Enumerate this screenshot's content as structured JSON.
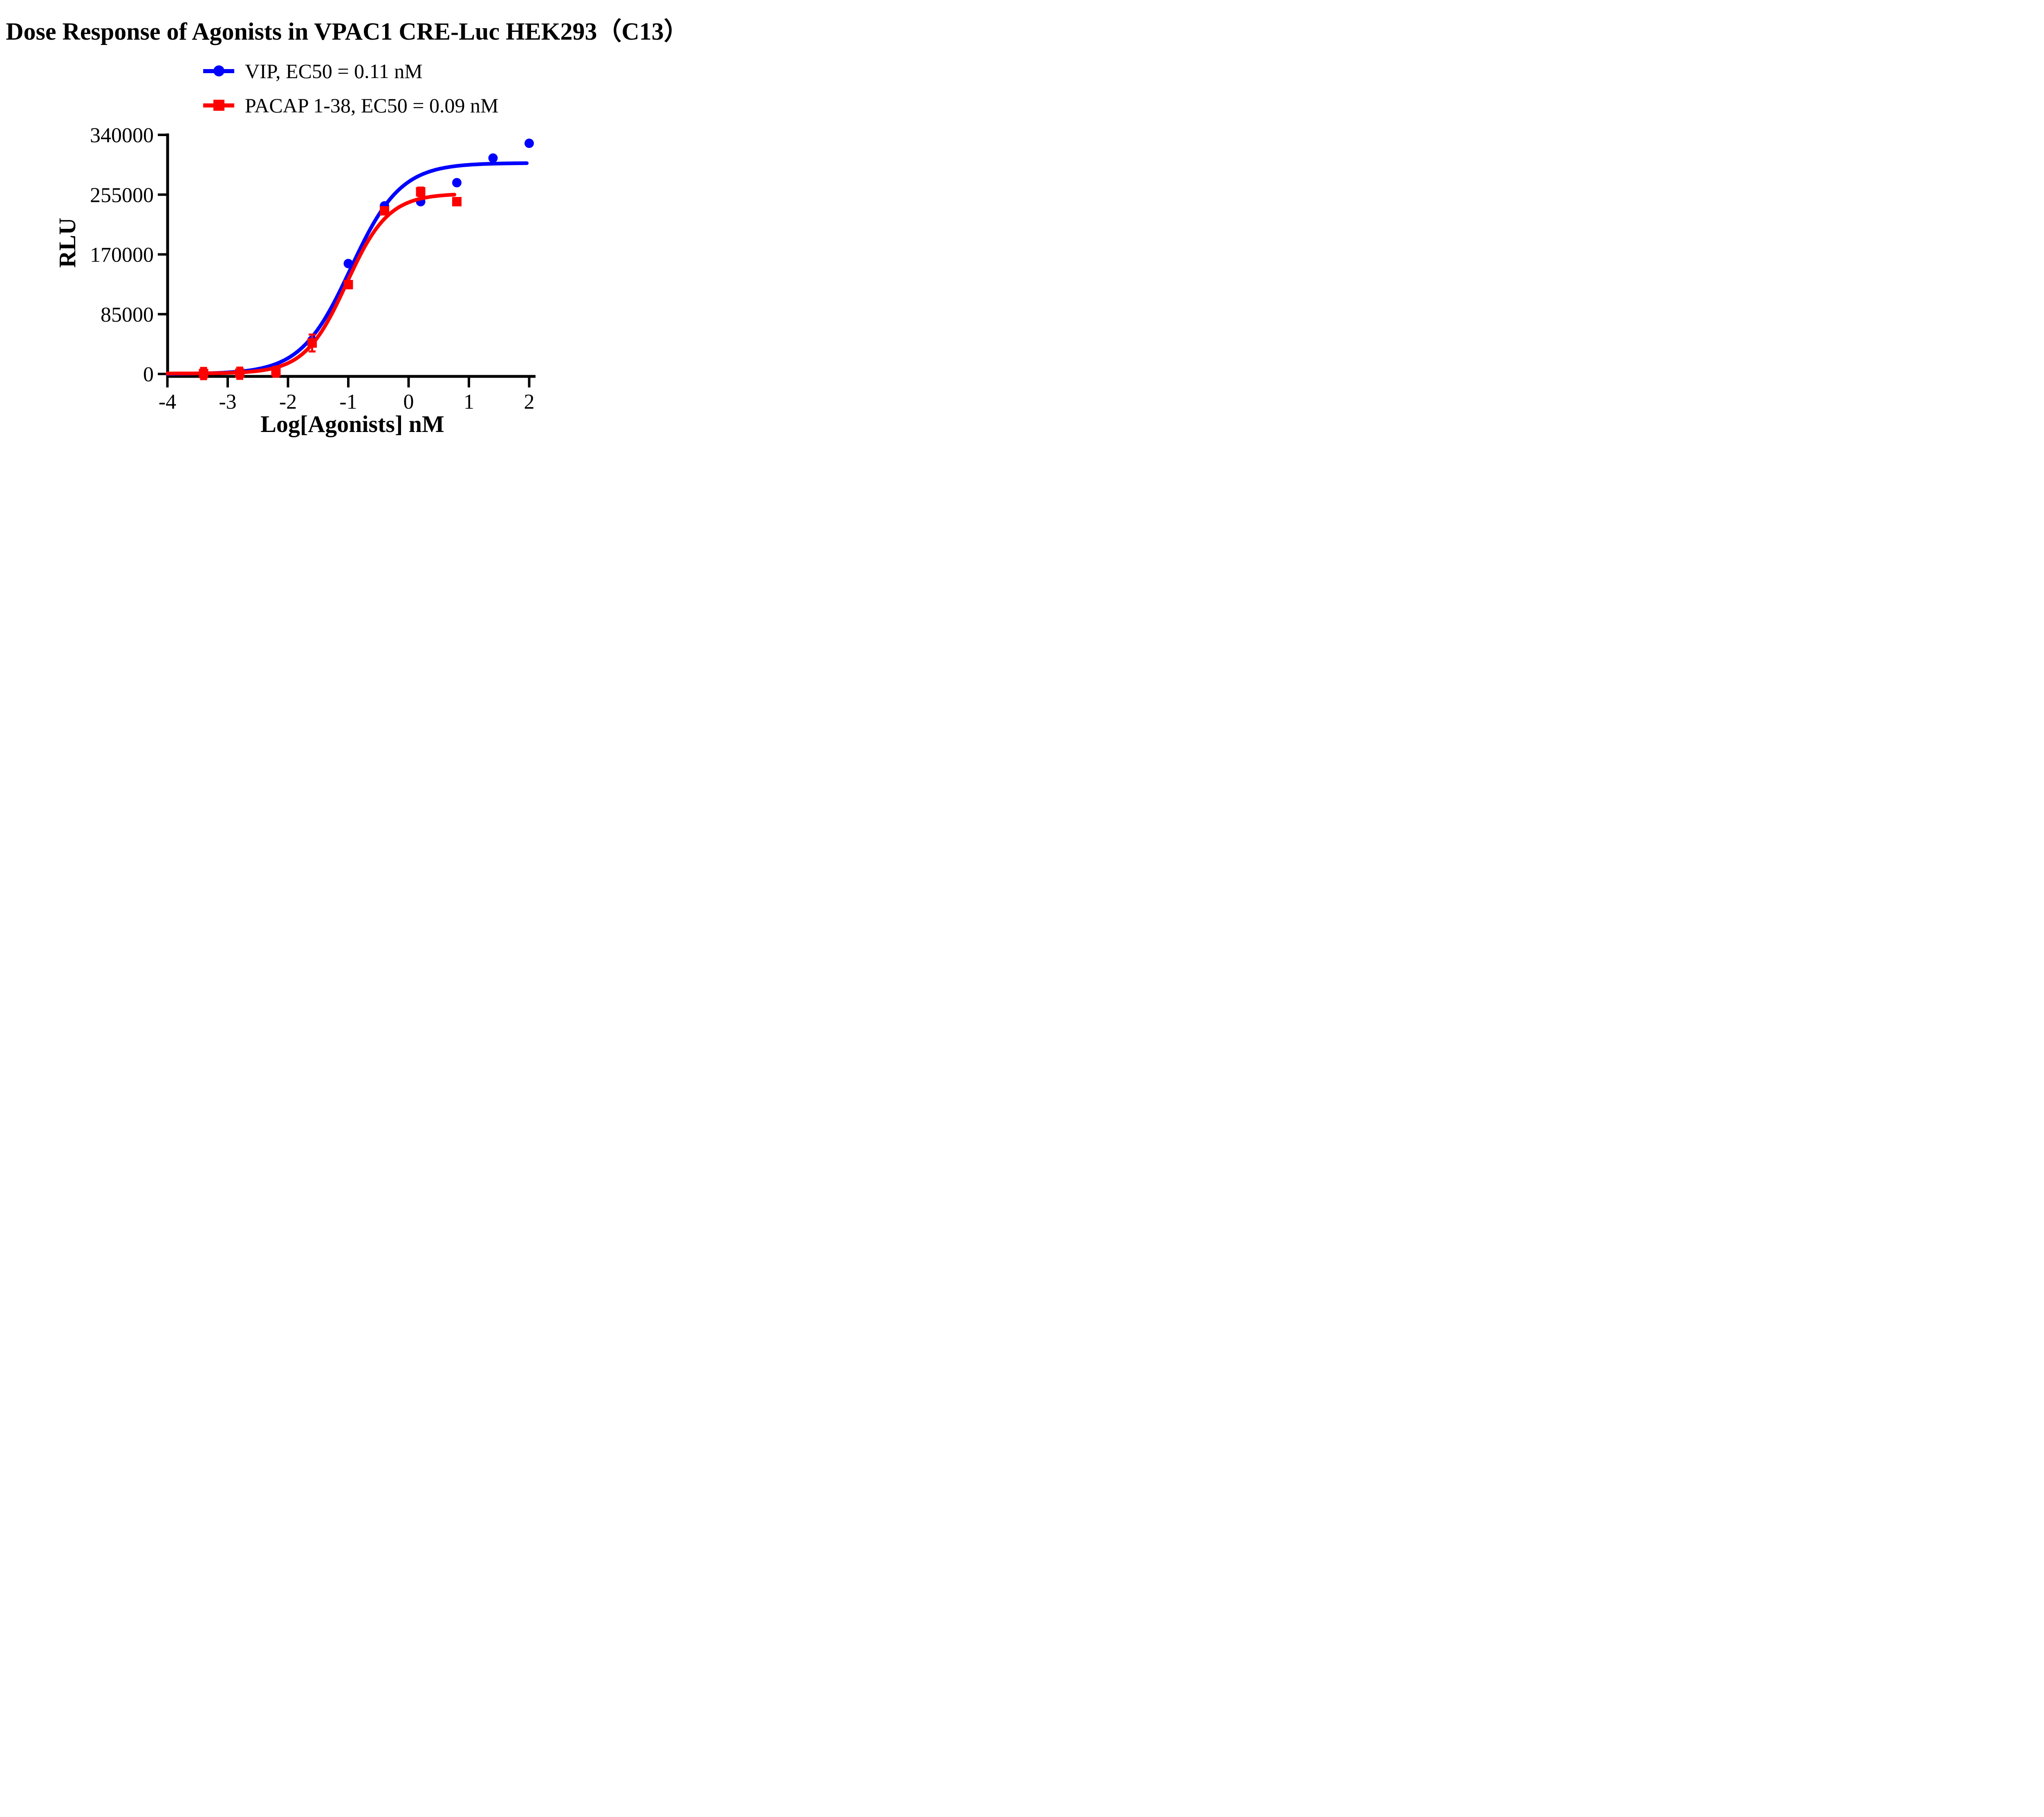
{
  "title": "Dose Response of Agonists in VPAC1 CRE-Luc HEK293（C13）",
  "legend": {
    "items": [
      {
        "label": "VIP, EC50 = 0.11 nM",
        "color": "#0000ff",
        "marker": "circle"
      },
      {
        "label": "PACAP 1-38, EC50 = 0.09 nM",
        "color": "#ff0000",
        "marker": "square"
      }
    ]
  },
  "chart_data": {
    "type": "scatter",
    "title": "Dose Response of Agonists in VPAC1 CRE-Luc HEK293（C13）",
    "xlabel": "Log[Agonists] nM",
    "ylabel": "RLU",
    "xlim": [
      -4,
      2
    ],
    "ylim": [
      0,
      340000
    ],
    "x_ticks": [
      -4,
      -3,
      -2,
      -1,
      0,
      1,
      2
    ],
    "y_ticks": [
      0,
      85000,
      170000,
      255000,
      340000
    ],
    "grid": false,
    "legend_position": "top-center",
    "series": [
      {
        "name": "VIP",
        "label": "VIP, EC50 = 0.11 nM",
        "ec50_nM": 0.11,
        "color": "#0000ff",
        "marker": "circle",
        "x": [
          -3.4,
          -2.8,
          -2.2,
          -1.6,
          -1.0,
          -0.4,
          0.2,
          0.8,
          1.4,
          2.0
        ],
        "y": [
          600,
          1800,
          9000,
          48000,
          157000,
          239000,
          245000,
          272000,
          307000,
          328000
        ],
        "y_err": null,
        "fit": {
          "model": "4PL",
          "bottom": 0,
          "top": 300000,
          "logEC50": -0.96,
          "hill": 1.05,
          "x_start": -4,
          "x_end": 1.98
        }
      },
      {
        "name": "PACAP 1-38",
        "label": "PACAP 1-38, EC50 = 0.09 nM",
        "ec50_nM": 0.09,
        "color": "#ff0000",
        "marker": "square",
        "x": [
          -3.4,
          -2.8,
          -2.2,
          -1.6,
          -1.0,
          -0.4,
          0.2,
          0.8
        ],
        "y": [
          600,
          1000,
          3000,
          44000,
          127000,
          232000,
          259000,
          245000
        ],
        "y_err": [
          8000,
          8000,
          7000,
          12000,
          4000,
          4000,
          6000,
          4000
        ],
        "fit": {
          "model": "4PL",
          "bottom": 600,
          "top": 256500,
          "logEC50": -1.03,
          "hill": 1.25,
          "x_start": -4,
          "x_end": 0.78
        }
      }
    ]
  }
}
